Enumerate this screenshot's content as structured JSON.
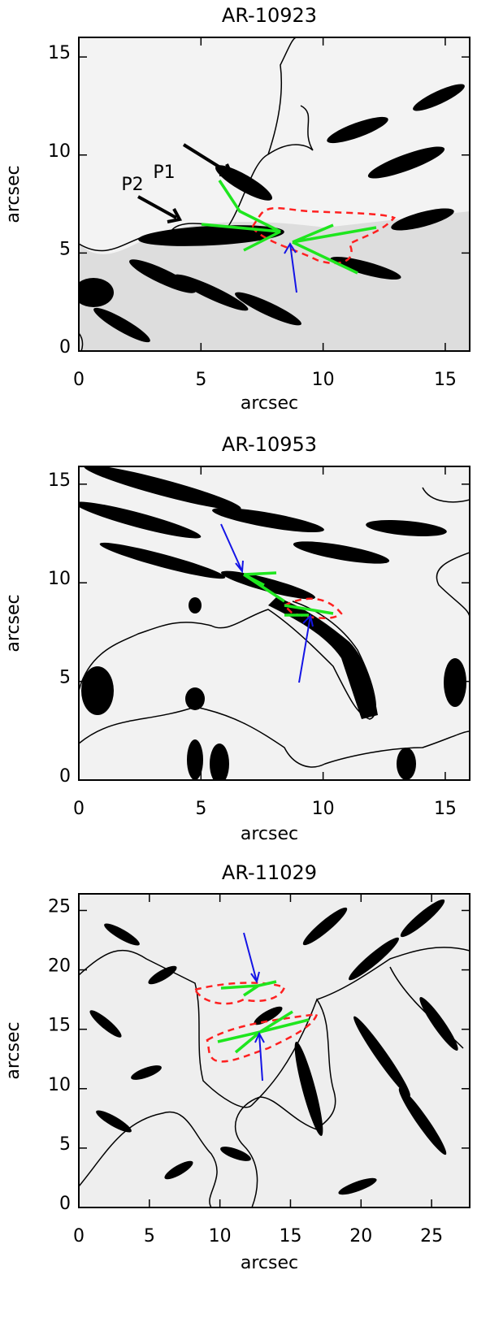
{
  "chart_data": [
    {
      "type": "image",
      "title": "AR-10923",
      "xlabel": "arcsec",
      "ylabel": "arcsec",
      "xlim": [
        0,
        16
      ],
      "ylim": [
        0,
        16
      ],
      "xticks": [
        0,
        5,
        10,
        15
      ],
      "yticks": [
        0,
        5,
        10,
        15
      ],
      "annotations": [
        "P1",
        "P2"
      ]
    },
    {
      "type": "image",
      "title": "AR-10953",
      "xlabel": "arcsec",
      "ylabel": "arcsec",
      "xlim": [
        0,
        16
      ],
      "ylim": [
        0,
        15.9
      ],
      "xticks": [
        0,
        5,
        10,
        15
      ],
      "yticks": [
        0,
        5,
        10,
        15
      ]
    },
    {
      "type": "image",
      "title": "AR-11029",
      "xlabel": "arcsec",
      "ylabel": "arcsec",
      "xlim": [
        0,
        27.7
      ],
      "ylim": [
        0,
        26.4
      ],
      "xticks": [
        0,
        5,
        10,
        15,
        20,
        25
      ],
      "yticks": [
        0,
        5,
        10,
        15,
        20,
        25
      ]
    }
  ]
}
